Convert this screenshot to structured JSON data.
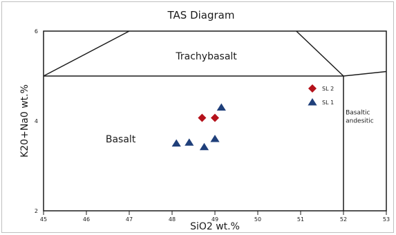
{
  "chart_data": {
    "type": "scatter",
    "title": "TAS Diagram",
    "xlabel": "SiO2 wt.%",
    "ylabel": "K20+Na0 wt.%",
    "xlim": [
      45,
      53
    ],
    "ylim": [
      2,
      6
    ],
    "xticks": [
      "45",
      "46",
      "47",
      "48",
      "49",
      "50",
      "51",
      "52",
      "53"
    ],
    "yticks": [
      "2",
      "4",
      "6"
    ],
    "fields": [
      {
        "name": "Trachybasalt",
        "label": "Trachybasalt"
      },
      {
        "name": "Basalt",
        "label": "Basalt"
      },
      {
        "name": "Basaltic andesitic",
        "label_lines": [
          "Basaltic",
          "andesitic"
        ]
      }
    ],
    "boundaries": [
      [
        [
          45,
          5.0
        ],
        [
          52,
          5.0
        ]
      ],
      [
        [
          52,
          2.0
        ],
        [
          52,
          5.0
        ]
      ],
      [
        [
          45,
          5.0
        ],
        [
          47,
          6.0
        ]
      ],
      [
        [
          50.9,
          6.0
        ],
        [
          52,
          5.0
        ]
      ],
      [
        [
          52,
          5.0
        ],
        [
          53,
          5.1
        ]
      ]
    ],
    "series": [
      {
        "name": "SL 2",
        "marker": "diamond",
        "color": "#b5121b",
        "x": [
          48.7,
          49.0
        ],
        "y": [
          4.07,
          4.07
        ]
      },
      {
        "name": "SL 1",
        "marker": "triangle",
        "color": "#1f3f7a",
        "x": [
          49.15,
          48.1,
          48.4,
          48.75,
          49.0
        ],
        "y": [
          4.3,
          3.5,
          3.52,
          3.42,
          3.6
        ]
      }
    ],
    "legend": "top-right",
    "grid": false
  }
}
